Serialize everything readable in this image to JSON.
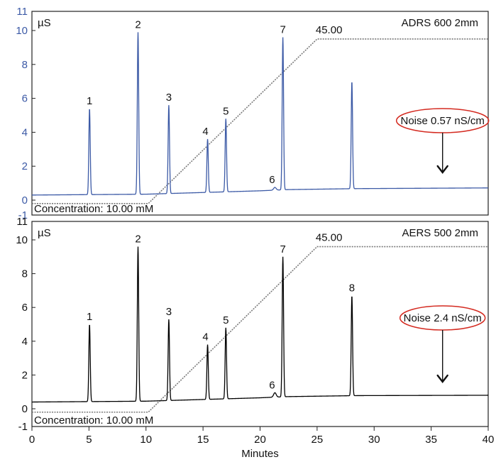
{
  "chart_data": [
    {
      "type": "line",
      "instrument": "ADRS 600 2mm",
      "y_unit": "µS",
      "color": "#3c5aa6",
      "ylim": [
        -1,
        11
      ],
      "yticks": [
        "11",
        "10",
        "8",
        "6",
        "4",
        "2",
        "0",
        "-1"
      ],
      "xlim": [
        0,
        40
      ],
      "baseline": [
        [
          0,
          0.3
        ],
        [
          10,
          0.35
        ],
        [
          15,
          0.45
        ],
        [
          20,
          0.55
        ],
        [
          22.4,
          0.62
        ],
        [
          28.6,
          0.68
        ],
        [
          40,
          0.72
        ]
      ],
      "peaks": [
        {
          "label": "1",
          "x": 5.05,
          "y": 5.4
        },
        {
          "label": "2",
          "x": 9.3,
          "y": 9.9
        },
        {
          "label": "3",
          "x": 12.0,
          "y": 5.6
        },
        {
          "label": "4",
          "x": 15.4,
          "y": 3.6
        },
        {
          "label": "5",
          "x": 17.0,
          "y": 4.8
        },
        {
          "label": "6",
          "x": 21.3,
          "y": 0.75
        },
        {
          "label": "7",
          "x": 22.0,
          "y": 9.6
        },
        {
          "label": "",
          "x": 28.05,
          "y": 7.0
        }
      ],
      "gradient": {
        "label": "45.00",
        "points": [
          [
            0,
            -0.2
          ],
          [
            10.2,
            -0.2
          ],
          [
            25,
            9.5
          ],
          [
            40,
            9.5
          ]
        ]
      },
      "concentration_label": "Concentration: 10.00 mM",
      "noise_label": "Noise 0.57 nS/cm"
    },
    {
      "type": "line",
      "instrument": "AERS 500 2mm",
      "y_unit": "µS",
      "color": "#000000",
      "ylim": [
        -1,
        11
      ],
      "yticks": [
        "11",
        "10",
        "8",
        "6",
        "4",
        "2",
        "0",
        "-1"
      ],
      "xlim": [
        0,
        40
      ],
      "baseline": [
        [
          0,
          0.4
        ],
        [
          10,
          0.45
        ],
        [
          15,
          0.55
        ],
        [
          20,
          0.65
        ],
        [
          22.4,
          0.72
        ],
        [
          28.6,
          0.78
        ],
        [
          40,
          0.8
        ]
      ],
      "peaks": [
        {
          "label": "1",
          "x": 5.05,
          "y": 5.0
        },
        {
          "label": "2",
          "x": 9.3,
          "y": 9.6
        },
        {
          "label": "3",
          "x": 12.0,
          "y": 5.3
        },
        {
          "label": "4",
          "x": 15.4,
          "y": 3.8
        },
        {
          "label": "5",
          "x": 17.0,
          "y": 4.8
        },
        {
          "label": "6",
          "x": 21.3,
          "y": 0.95
        },
        {
          "label": "7",
          "x": 22.0,
          "y": 9.0
        },
        {
          "label": "8",
          "x": 28.05,
          "y": 6.7
        }
      ],
      "gradient": {
        "label": "45.00",
        "points": [
          [
            0,
            -0.2
          ],
          [
            10.2,
            -0.2
          ],
          [
            25,
            9.6
          ],
          [
            40,
            9.6
          ]
        ]
      },
      "concentration_label": "Concentration: 10.00 mM",
      "noise_label": "Noise 2.4 nS/cm"
    }
  ],
  "x_axis": {
    "label": "Minutes",
    "ticks": [
      "0",
      "5",
      "10",
      "15",
      "20",
      "25",
      "30",
      "35",
      "40"
    ]
  }
}
